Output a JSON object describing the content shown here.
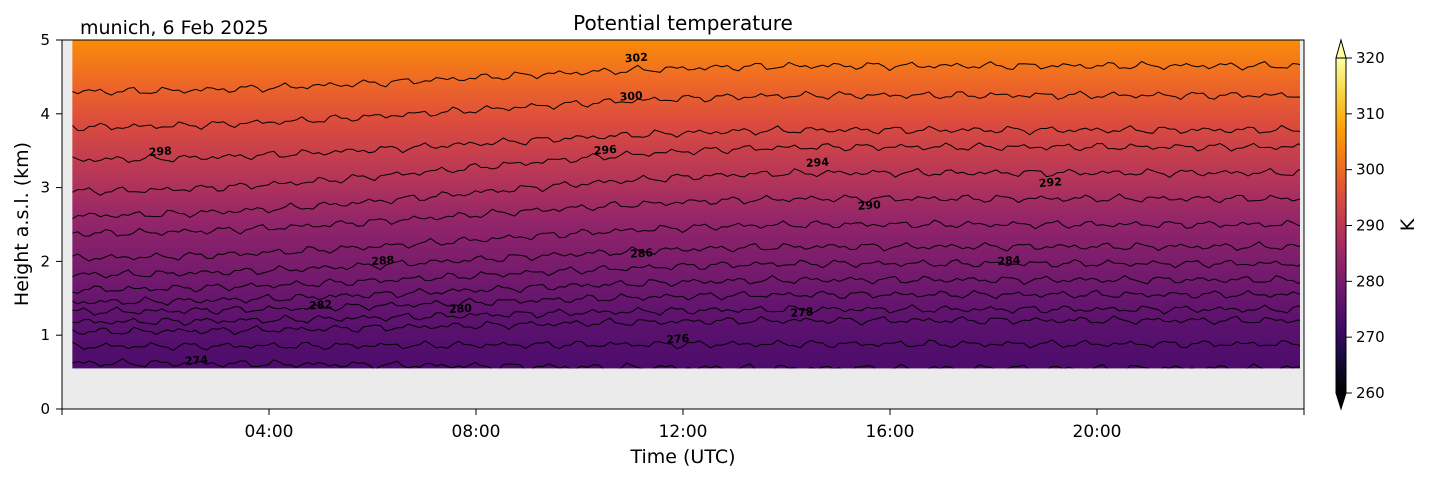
{
  "chart_data": {
    "type": "heatmap",
    "location_title": "munich, 6 Feb 2025",
    "title": "Potential temperature",
    "xlabel": "Time (UTC)",
    "ylabel": "Height a.s.l. (km)",
    "x_ticks": [
      {
        "value": 4,
        "label": "04:00"
      },
      {
        "value": 8,
        "label": "08:00"
      },
      {
        "value": 12,
        "label": "12:00"
      },
      {
        "value": 16,
        "label": "16:00"
      },
      {
        "value": 20,
        "label": "20:00"
      }
    ],
    "xlim": [
      0,
      24
    ],
    "ylim": [
      0,
      5
    ],
    "y_ticks": [
      0,
      1,
      2,
      3,
      4,
      5
    ],
    "data_extent": {
      "x": [
        0.2,
        24
      ],
      "y": [
        0.55,
        5
      ]
    },
    "colorbar": {
      "label": "K",
      "ticks": [
        260,
        270,
        280,
        290,
        300,
        310,
        320
      ],
      "range": [
        260,
        320
      ],
      "colormap": "inferno"
    },
    "contour_levels": [
      274,
      276,
      278,
      280,
      282,
      284,
      286,
      288,
      290,
      292,
      294,
      296,
      298,
      300,
      302
    ],
    "contour_heights_km": [
      {
        "level": 274,
        "start": 0.62,
        "end": 0.55
      },
      {
        "level": 276,
        "start": 0.85,
        "end": 0.88
      },
      {
        "level": 278,
        "start": 1.05,
        "end": 1.2
      },
      {
        "level": 280,
        "start": 1.18,
        "end": 1.35
      },
      {
        "level": 282,
        "start": 1.32,
        "end": 1.55
      },
      {
        "level": 284,
        "start": 1.45,
        "end": 1.75
      },
      {
        "level": 286,
        "start": 1.62,
        "end": 1.97
      },
      {
        "level": 288,
        "start": 1.82,
        "end": 2.2
      },
      {
        "level": 290,
        "start": 2.05,
        "end": 2.5
      },
      {
        "level": 292,
        "start": 2.38,
        "end": 2.85
      },
      {
        "level": 294,
        "start": 2.62,
        "end": 3.2
      },
      {
        "level": 296,
        "start": 2.95,
        "end": 3.55
      },
      {
        "level": 298,
        "start": 3.38,
        "end": 3.78
      },
      {
        "level": 300,
        "start": 3.82,
        "end": 4.25
      },
      {
        "level": 302,
        "start": 4.3,
        "end": 4.65
      }
    ],
    "contour_labels": [
      {
        "text": "274",
        "x": 2.6,
        "y": 0.65
      },
      {
        "text": "276",
        "x": 11.9,
        "y": 0.94
      },
      {
        "text": "278",
        "x": 14.3,
        "y": 1.3
      },
      {
        "text": "280",
        "x": 7.7,
        "y": 1.35
      },
      {
        "text": "282",
        "x": 5.0,
        "y": 1.4
      },
      {
        "text": "284",
        "x": 18.3,
        "y": 2.0
      },
      {
        "text": "286",
        "x": 11.2,
        "y": 2.1
      },
      {
        "text": "288",
        "x": 6.2,
        "y": 2.0
      },
      {
        "text": "290",
        "x": 15.6,
        "y": 2.75
      },
      {
        "text": "292",
        "x": 19.1,
        "y": 3.06
      },
      {
        "text": "294",
        "x": 14.6,
        "y": 3.33
      },
      {
        "text": "296",
        "x": 10.5,
        "y": 3.5
      },
      {
        "text": "298",
        "x": 1.9,
        "y": 3.48
      },
      {
        "text": "300",
        "x": 11.0,
        "y": 4.23
      },
      {
        "text": "302",
        "x": 11.1,
        "y": 4.75
      }
    ]
  }
}
